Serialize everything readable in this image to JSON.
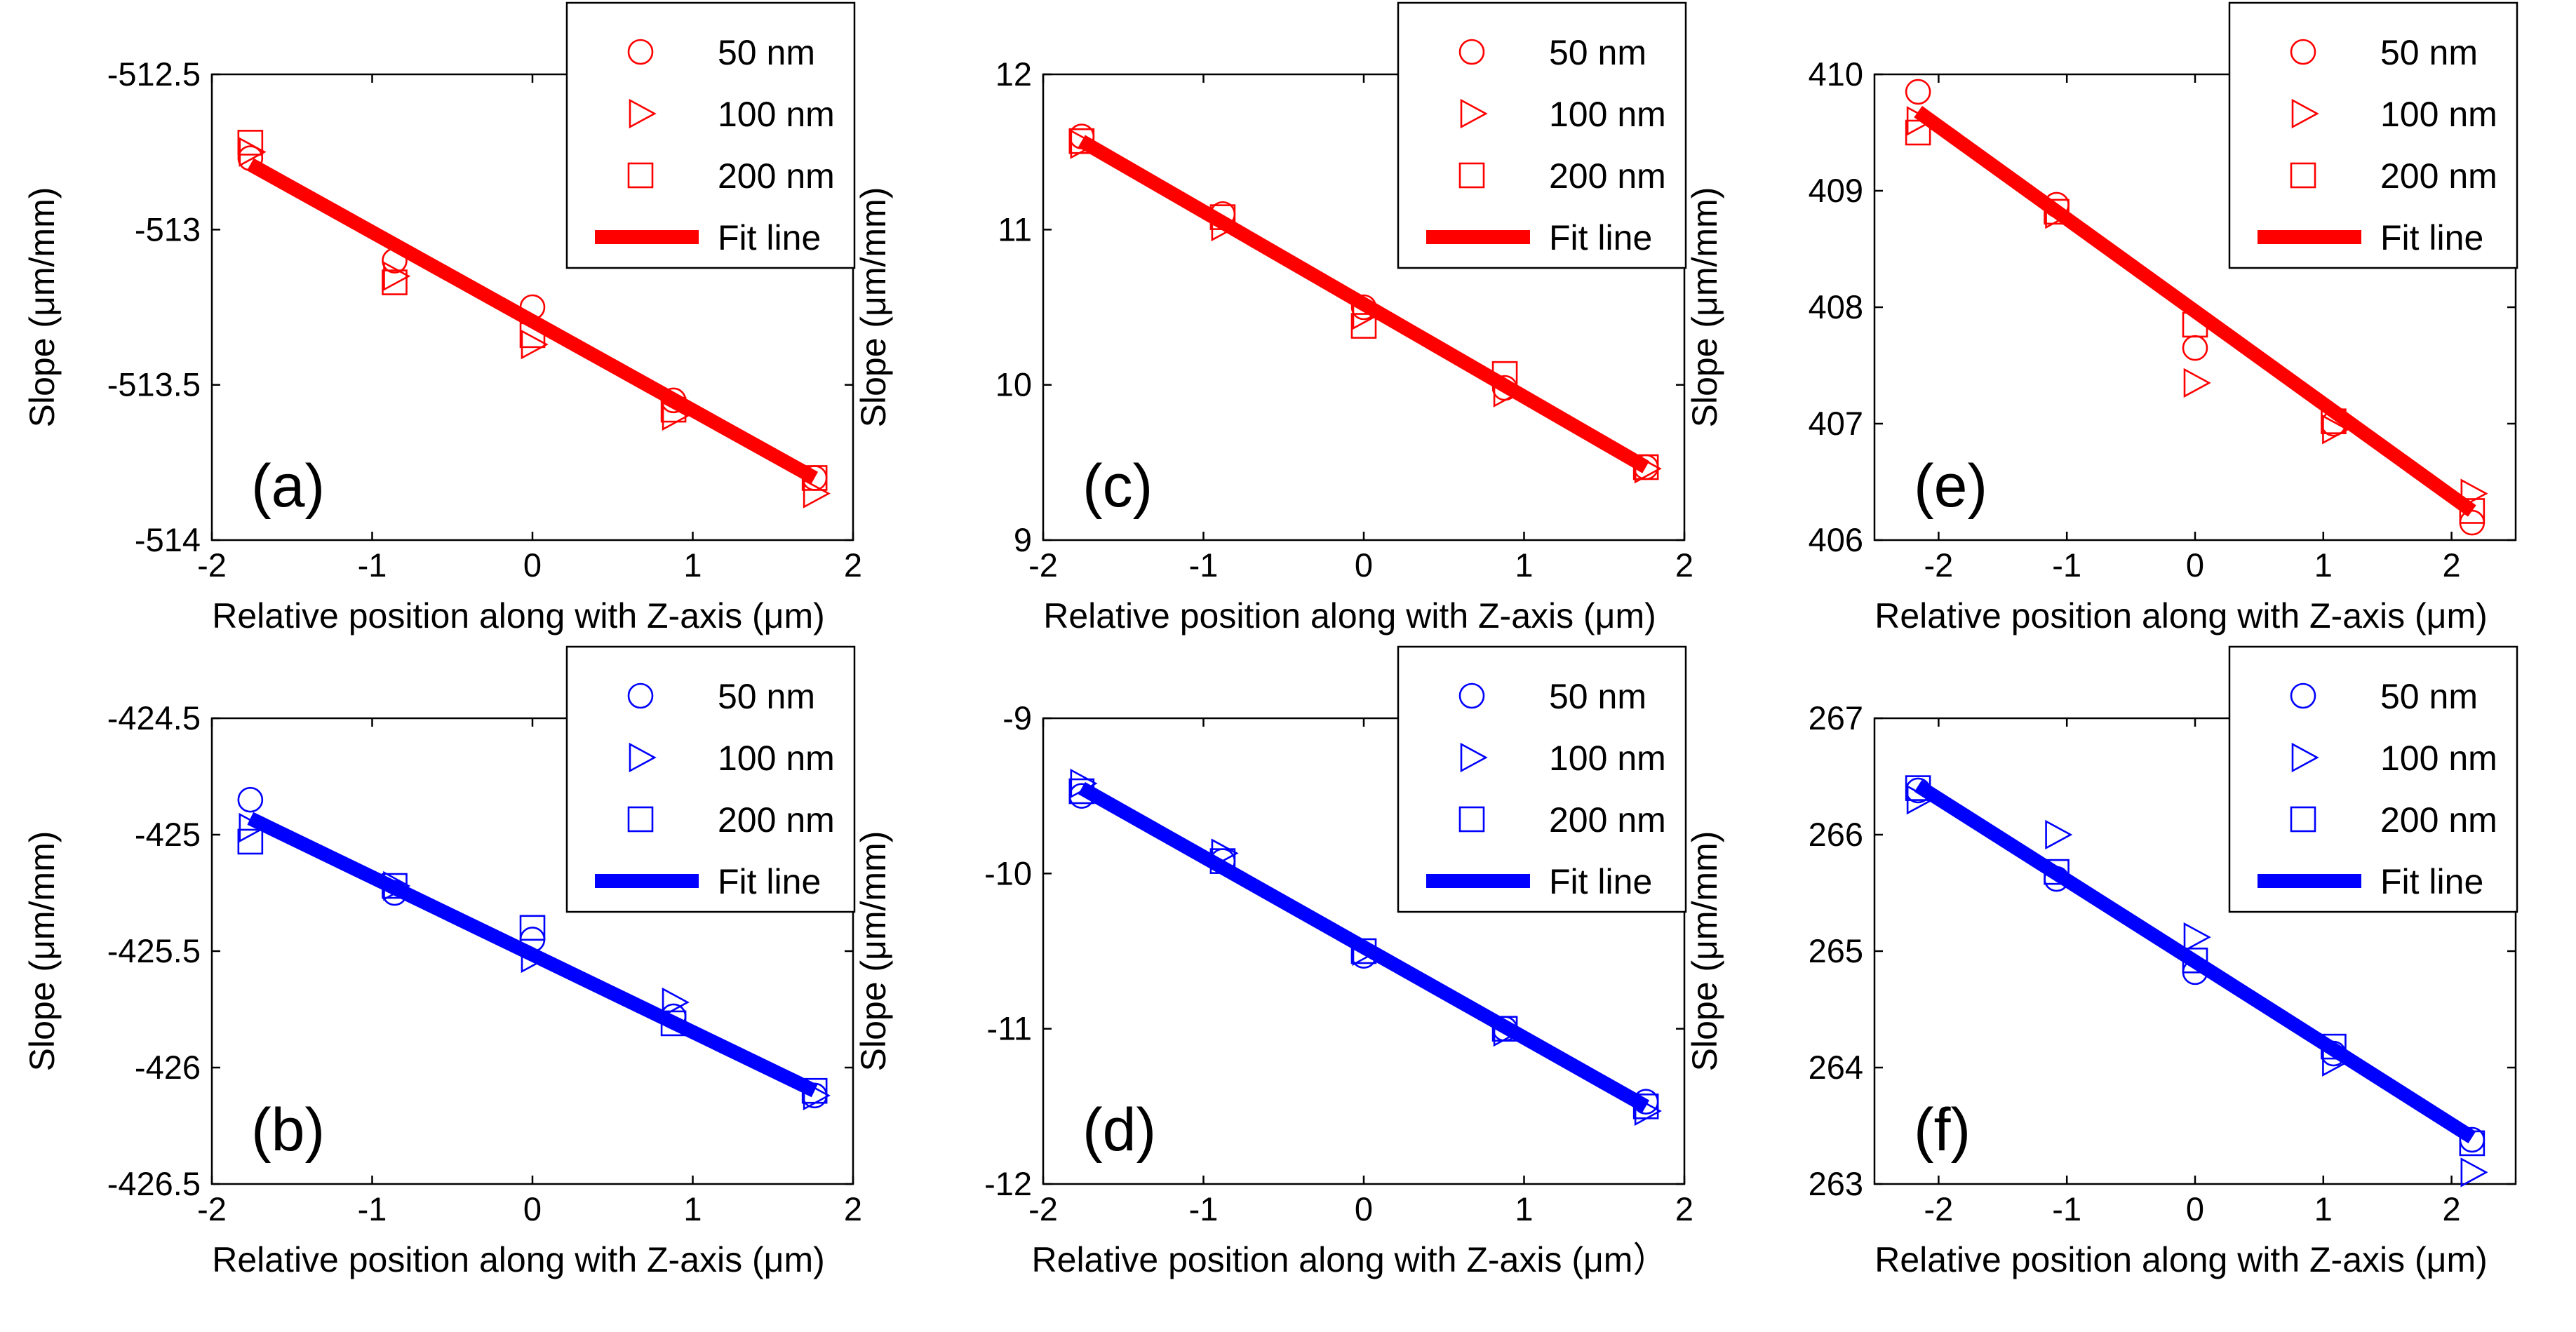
{
  "colors": {
    "red": "#ff0000",
    "blue": "#0000ff",
    "axis": "#000000"
  },
  "chart_data": [
    {
      "id": "a",
      "type": "scatter",
      "panel_label": "(a)",
      "xlabel": "Relative position along with Z-axis (μm)",
      "ylabel": "Slope (μm/mm)",
      "xlim": [
        -2,
        2
      ],
      "ylim": [
        -514,
        -512.5
      ],
      "xticks": [
        -2,
        -1,
        0,
        1,
        2
      ],
      "xtick_labels": [
        "-2",
        "-1",
        "0",
        "1",
        "2"
      ],
      "yticks": [
        -514,
        -513.5,
        -513,
        -512.5
      ],
      "ytick_labels": [
        "-514",
        "-513.5",
        "-513",
        "-512.5"
      ],
      "color": "#ff0000",
      "legend_position": "top-right",
      "series": [
        {
          "name": "50 nm",
          "marker": "circle",
          "x": [
            -1.76,
            -0.86,
            0,
            0.88,
            1.76
          ],
          "y": [
            -512.77,
            -513.1,
            -513.25,
            -513.55,
            -513.8
          ]
        },
        {
          "name": "100 nm",
          "marker": "triangle-right",
          "x": [
            -1.76,
            -0.86,
            0,
            0.88,
            1.76
          ],
          "y": [
            -512.75,
            -513.15,
            -513.37,
            -513.6,
            -513.85
          ]
        },
        {
          "name": "200 nm",
          "marker": "square",
          "x": [
            -1.76,
            -0.86,
            0,
            0.88,
            1.76
          ],
          "y": [
            -512.72,
            -513.17,
            -513.34,
            -513.58,
            -513.8
          ]
        },
        {
          "name": "Fit line",
          "marker": "line",
          "x": [
            -1.76,
            1.76
          ],
          "y": [
            -512.79,
            -513.8
          ]
        }
      ]
    },
    {
      "id": "b",
      "type": "scatter",
      "panel_label": "(b)",
      "xlabel": "Relative position along with Z-axis (μm)",
      "ylabel": "Slope (μm/mm)",
      "xlim": [
        -2,
        2
      ],
      "ylim": [
        -426.5,
        -424.5
      ],
      "xticks": [
        -2,
        -1,
        0,
        1,
        2
      ],
      "xtick_labels": [
        "-2",
        "-1",
        "0",
        "1",
        "2"
      ],
      "yticks": [
        -426.5,
        -426,
        -425.5,
        -425,
        -424.5
      ],
      "ytick_labels": [
        "-426.5",
        "-426",
        "-425.5",
        "-425",
        "-424.5"
      ],
      "color": "#0000ff",
      "legend_position": "top-right",
      "series": [
        {
          "name": "50 nm",
          "marker": "circle",
          "x": [
            -1.76,
            -0.86,
            0,
            0.88,
            1.76
          ],
          "y": [
            -424.85,
            -425.25,
            -425.45,
            -425.78,
            -426.12
          ]
        },
        {
          "name": "100 nm",
          "marker": "triangle-right",
          "x": [
            -1.76,
            -0.86,
            0,
            0.88,
            1.76
          ],
          "y": [
            -424.97,
            -425.22,
            -425.53,
            -425.72,
            -426.12
          ]
        },
        {
          "name": "200 nm",
          "marker": "square",
          "x": [
            -1.76,
            -0.86,
            0,
            0.88,
            1.76
          ],
          "y": [
            -425.03,
            -425.22,
            -425.4,
            -425.81,
            -426.1
          ]
        },
        {
          "name": "Fit line",
          "marker": "line",
          "x": [
            -1.76,
            1.76
          ],
          "y": [
            -424.93,
            -426.1
          ]
        }
      ]
    },
    {
      "id": "c",
      "type": "scatter",
      "panel_label": "(c)",
      "xlabel": "Relative position along with Z-axis (μm)",
      "ylabel": "Slope (μm/mm)",
      "xlim": [
        -2,
        2
      ],
      "ylim": [
        9,
        12
      ],
      "xticks": [
        -2,
        -1,
        0,
        1,
        2
      ],
      "xtick_labels": [
        "-2",
        "-1",
        "0",
        "1",
        "2"
      ],
      "yticks": [
        9,
        10,
        11,
        12
      ],
      "ytick_labels": [
        "9",
        "10",
        "11",
        "12"
      ],
      "color": "#ff0000",
      "legend_position": "top-right",
      "series": [
        {
          "name": "50 nm",
          "marker": "circle",
          "x": [
            -1.76,
            -0.88,
            0,
            0.88,
            1.76
          ],
          "y": [
            11.6,
            11.1,
            10.5,
            9.98,
            9.47
          ]
        },
        {
          "name": "100 nm",
          "marker": "triangle-right",
          "x": [
            -1.76,
            -0.88,
            0,
            0.88,
            1.76
          ],
          "y": [
            11.55,
            11.02,
            10.45,
            9.95,
            9.46
          ]
        },
        {
          "name": "200 nm",
          "marker": "square",
          "x": [
            -1.76,
            -0.88,
            0,
            0.88,
            1.76
          ],
          "y": [
            11.57,
            11.08,
            10.38,
            10.07,
            9.47
          ]
        },
        {
          "name": "Fit line",
          "marker": "line",
          "x": [
            -1.76,
            1.76
          ],
          "y": [
            11.57,
            9.47
          ]
        }
      ]
    },
    {
      "id": "d",
      "type": "scatter",
      "panel_label": "(d)",
      "xlabel": "Relative position along with Z-axis (μm）",
      "ylabel": "Slope (μm/mm)",
      "xlim": [
        -2,
        2
      ],
      "ylim": [
        -12,
        -9
      ],
      "xticks": [
        -2,
        -1,
        0,
        1,
        2
      ],
      "xtick_labels": [
        "-2",
        "-1",
        "0",
        "1",
        "2"
      ],
      "yticks": [
        -12,
        -11,
        -10,
        -9
      ],
      "ytick_labels": [
        "-12",
        "-11",
        "-10",
        "-9"
      ],
      "color": "#0000ff",
      "legend_position": "top-right",
      "series": [
        {
          "name": "50 nm",
          "marker": "circle",
          "x": [
            -1.76,
            -0.88,
            0,
            0.88,
            1.76
          ],
          "y": [
            -9.5,
            -9.92,
            -10.53,
            -11.0,
            -11.47
          ]
        },
        {
          "name": "100 nm",
          "marker": "triangle-right",
          "x": [
            -1.76,
            -0.88,
            0,
            0.88,
            1.76
          ],
          "y": [
            -9.42,
            -9.87,
            -10.5,
            -11.02,
            -11.53
          ]
        },
        {
          "name": "200 nm",
          "marker": "square",
          "x": [
            -1.76,
            -0.88,
            0,
            0.88,
            1.76
          ],
          "y": [
            -9.47,
            -9.92,
            -10.5,
            -11.0,
            -11.5
          ]
        },
        {
          "name": "Fit line",
          "marker": "line",
          "x": [
            -1.76,
            1.76
          ],
          "y": [
            -9.45,
            -11.5
          ]
        }
      ]
    },
    {
      "id": "e",
      "type": "scatter",
      "panel_label": "(e)",
      "xlabel": "Relative position along with Z-axis (μm)",
      "ylabel": "Slope (μm/mm)",
      "xlim": [
        -2.5,
        2.5
      ],
      "ylim": [
        406,
        410
      ],
      "xticks": [
        -2,
        -1,
        0,
        1,
        2
      ],
      "xtick_labels": [
        "-2",
        "-1",
        "0",
        "1",
        "2"
      ],
      "yticks": [
        406,
        407,
        408,
        409,
        410
      ],
      "ytick_labels": [
        "406",
        "407",
        "408",
        "409",
        "410"
      ],
      "color": "#ff0000",
      "legend_position": "top-right",
      "series": [
        {
          "name": "50 nm",
          "marker": "circle",
          "x": [
            -2.16,
            -1.08,
            0,
            1.08,
            2.16
          ],
          "y": [
            409.85,
            408.88,
            407.65,
            407.0,
            406.15
          ]
        },
        {
          "name": "100 nm",
          "marker": "triangle-right",
          "x": [
            -2.16,
            -1.08,
            0,
            1.08,
            2.16
          ],
          "y": [
            409.6,
            408.8,
            407.35,
            406.95,
            406.4
          ]
        },
        {
          "name": "200 nm",
          "marker": "square",
          "x": [
            -2.16,
            -1.08,
            0,
            1.08,
            2.16
          ],
          "y": [
            409.5,
            408.82,
            407.85,
            407.02,
            406.25
          ]
        },
        {
          "name": "Fit line",
          "marker": "line",
          "x": [
            -2.16,
            2.16
          ],
          "y": [
            409.68,
            406.25
          ]
        }
      ]
    },
    {
      "id": "f",
      "type": "scatter",
      "panel_label": "(f)",
      "xlabel": "Relative position along with Z-axis (μm)",
      "ylabel": "Slope (μm/mm)",
      "xlim": [
        -2.5,
        2.5
      ],
      "ylim": [
        263,
        267
      ],
      "xticks": [
        -2,
        -1,
        0,
        1,
        2
      ],
      "xtick_labels": [
        "-2",
        "-1",
        "0",
        "1",
        "2"
      ],
      "yticks": [
        263,
        264,
        265,
        266,
        267
      ],
      "ytick_labels": [
        "263",
        "264",
        "265",
        "266",
        "267"
      ],
      "color": "#0000ff",
      "legend_position": "top-right",
      "series": [
        {
          "name": "50 nm",
          "marker": "circle",
          "x": [
            -2.16,
            -1.08,
            0,
            1.08,
            2.16
          ],
          "y": [
            266.38,
            265.62,
            264.82,
            264.12,
            263.38
          ]
        },
        {
          "name": "100 nm",
          "marker": "triangle-right",
          "x": [
            -2.16,
            -1.08,
            0,
            1.08,
            2.16
          ],
          "y": [
            266.3,
            266.0,
            265.12,
            264.05,
            263.1
          ]
        },
        {
          "name": "200 nm",
          "marker": "square",
          "x": [
            -2.16,
            -1.08,
            0,
            1.08,
            2.16
          ],
          "y": [
            266.4,
            265.68,
            264.92,
            264.18,
            263.35
          ]
        },
        {
          "name": "Fit line",
          "marker": "line",
          "x": [
            -2.16,
            2.16
          ],
          "y": [
            266.42,
            263.4
          ]
        }
      ]
    }
  ]
}
